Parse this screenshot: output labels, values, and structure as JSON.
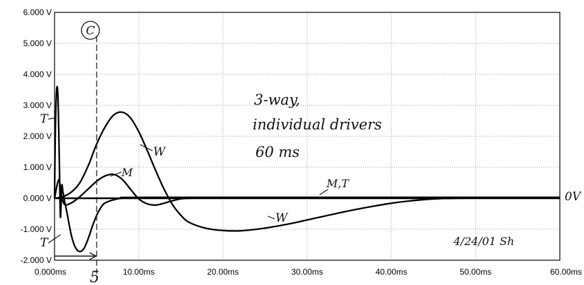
{
  "chart_data": {
    "type": "line",
    "title": "",
    "xlabel": "",
    "ylabel": "",
    "xlim": [
      0,
      60
    ],
    "ylim": [
      -2,
      6
    ],
    "grid": true,
    "x_ticks": [
      "0.000ms",
      "10.00ms",
      "20.00ms",
      "30.00ms",
      "40.00ms",
      "50.00ms",
      "60.00ms"
    ],
    "y_ticks": [
      "-2.000 V",
      "-1.000 V",
      "0.000 V",
      "1.000 V",
      "2.000 V",
      "3.000 V",
      "4.000 V",
      "5.000 V",
      "6.000 V"
    ],
    "series": [
      {
        "name": "W",
        "x": [
          0,
          0.5,
          1,
          2,
          3,
          4,
          5,
          6,
          7,
          8,
          9,
          10,
          11,
          12,
          13,
          14,
          15,
          16,
          18,
          20,
          22,
          24,
          26,
          28,
          30,
          32,
          34,
          36,
          38,
          40,
          42,
          44,
          46,
          48,
          50,
          55,
          60
        ],
        "values": [
          0,
          0.02,
          0.05,
          0.2,
          0.5,
          1.05,
          1.75,
          2.3,
          2.68,
          2.78,
          2.6,
          2.15,
          1.55,
          0.9,
          0.3,
          -0.2,
          -0.55,
          -0.78,
          -0.97,
          -1.04,
          -1.05,
          -1.0,
          -0.92,
          -0.82,
          -0.7,
          -0.58,
          -0.46,
          -0.35,
          -0.25,
          -0.16,
          -0.09,
          -0.04,
          -0.01,
          0.0,
          0.01,
          0.02,
          0.03
        ]
      },
      {
        "name": "M",
        "x": [
          0,
          0.5,
          0.8,
          1.2,
          2,
          3,
          4,
          5,
          6,
          7,
          8,
          9,
          10,
          11,
          12,
          13,
          14,
          15,
          16,
          18,
          20,
          60
        ],
        "values": [
          0,
          0.6,
          0.1,
          -0.2,
          -0.15,
          0.05,
          0.3,
          0.55,
          0.72,
          0.77,
          0.62,
          0.3,
          -0.02,
          -0.18,
          -0.22,
          -0.16,
          -0.08,
          -0.02,
          0.0,
          0.01,
          0.02,
          0.02
        ]
      },
      {
        "name": "T",
        "x": [
          0,
          0.1,
          0.25,
          0.4,
          0.55,
          0.7,
          0.85,
          1.0,
          1.2,
          1.5,
          2.0,
          2.5,
          3.0,
          3.5,
          4.0,
          4.5,
          5.0,
          5.5,
          6.0,
          7.0,
          8.0,
          10,
          12,
          60
        ],
        "values": [
          0,
          2.2,
          3.5,
          3.3,
          1.5,
          -0.6,
          0.4,
          0.2,
          -0.1,
          -0.5,
          -1.2,
          -1.6,
          -1.72,
          -1.62,
          -1.3,
          -0.9,
          -0.55,
          -0.3,
          -0.15,
          -0.05,
          0.0,
          0.02,
          0.03,
          0.03
        ]
      }
    ],
    "annotations": {
      "circle_label": "C",
      "marker_x": 5,
      "marker_label": "5",
      "note_lines": [
        "3-way,",
        "individual drivers",
        "60 ms"
      ],
      "zero_label": "0V",
      "signature": "4/24/01 Sh",
      "t_top": "T",
      "t_bottom": "T",
      "w_top": "W",
      "w_bottom": "W",
      "m_label": "M",
      "mt_label": "M,T"
    }
  }
}
